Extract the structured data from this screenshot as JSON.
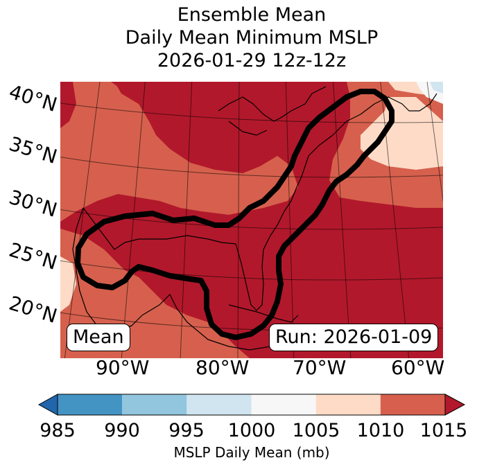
{
  "title": {
    "line1": "Ensemble Mean",
    "line2": "Daily Mean Minimum MSLP",
    "line3": "2026-01-29 12z-12z"
  },
  "lat_labels": [
    "40°N",
    "35°N",
    "30°N",
    "25°N",
    "20°N"
  ],
  "lon_labels": [
    "90°W",
    "80°W",
    "70°W",
    "60°W"
  ],
  "badges": {
    "left": "Mean",
    "right": "Run: 2026-01-09"
  },
  "colorbar": {
    "label": "MSLP Daily Mean (mb)",
    "ticks": [
      "985",
      "990",
      "995",
      "1000",
      "1005",
      "1010",
      "1015"
    ],
    "bins": [
      {
        "range": "<985",
        "color": "#2166ac"
      },
      {
        "range": "985-990",
        "color": "#4393c3"
      },
      {
        "range": "990-995",
        "color": "#92c5de"
      },
      {
        "range": "995-1000",
        "color": "#d1e5f0"
      },
      {
        "range": "1000-1005",
        "color": "#f7f7f7"
      },
      {
        "range": "1005-1010",
        "color": "#fddbc7"
      },
      {
        "range": "1010-1015",
        "color": "#d6604d"
      },
      {
        "range": ">1015",
        "color": "#b2182b"
      }
    ]
  },
  "colors": {
    "dominant": "#b2182b",
    "secondary": "#d6604d",
    "light": "#fddbc7",
    "contour": "#000000"
  }
}
